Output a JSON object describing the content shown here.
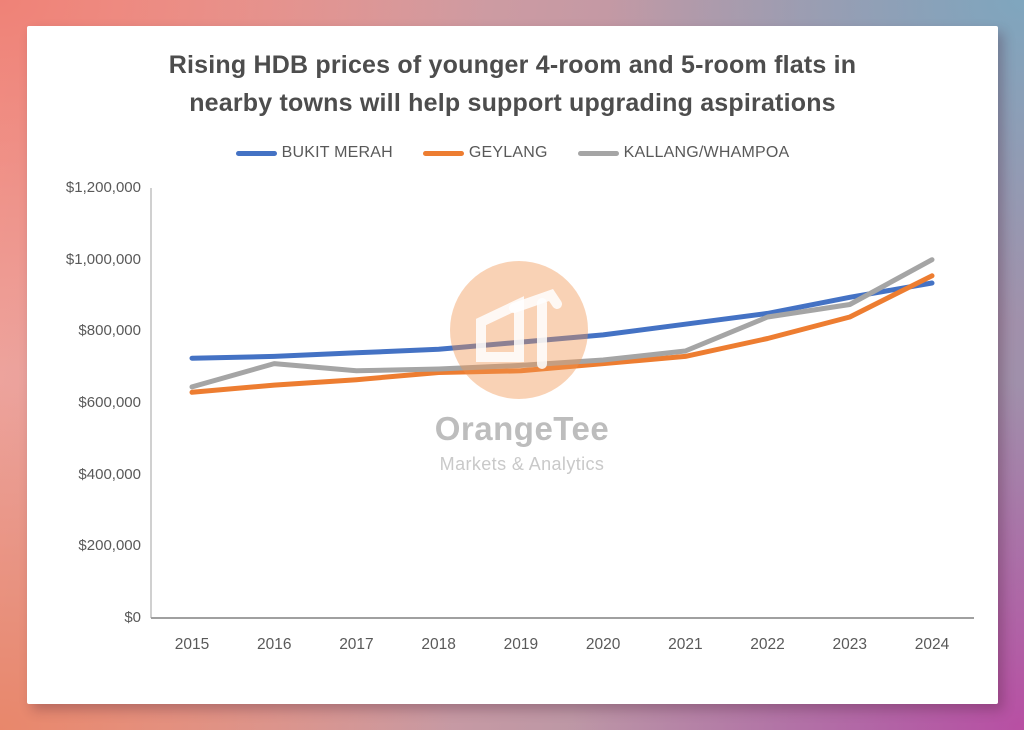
{
  "background": {
    "corner_colors": {
      "top_left": "#EF8277",
      "top_right": "#7FA6BE",
      "bottom_left": "#E8876B",
      "bottom_right": "#B84FA3"
    },
    "center_color": "#F2A49B",
    "right_mid_color": "#9B8FAC"
  },
  "card": {
    "background": "#FFFFFF"
  },
  "title": {
    "line1": "Rising HDB prices of younger 4-room and 5-room flats in",
    "line2": "nearby towns will help support upgrading aspirations"
  },
  "watermark": {
    "brand": "OrangeTee",
    "tagline": "Markets & Analytics",
    "logo_icon": "orangetee-ot-house-icon",
    "circle_color": "#F0934F"
  },
  "chart_data": {
    "type": "line",
    "title": "Rising HDB prices of younger 4-room and 5-room flats in nearby towns will help support upgrading aspirations",
    "categories": [
      "2015",
      "2016",
      "2017",
      "2018",
      "2019",
      "2020",
      "2021",
      "2022",
      "2023",
      "2024"
    ],
    "series": [
      {
        "name": "BUKIT MERAH",
        "color": "#4472C4",
        "values": [
          725000,
          730000,
          740000,
          750000,
          770000,
          790000,
          820000,
          850000,
          895000,
          935000
        ]
      },
      {
        "name": "GEYLANG",
        "color": "#ED7D31",
        "values": [
          630000,
          650000,
          665000,
          685000,
          690000,
          710000,
          730000,
          780000,
          840000,
          955000
        ]
      },
      {
        "name": "KALLANG/WHAMPOA",
        "color": "#A5A5A5",
        "values": [
          645000,
          710000,
          690000,
          695000,
          705000,
          720000,
          745000,
          840000,
          875000,
          1000000
        ]
      }
    ],
    "xlabel": "",
    "ylabel": "",
    "ylim": [
      0,
      1200000
    ],
    "y_tick_values": [
      0,
      200000,
      400000,
      600000,
      800000,
      1000000,
      1200000
    ],
    "y_tick_labels": [
      "$0",
      "$200,000",
      "$400,000",
      "$600,000",
      "$800,000",
      "$1,000,000",
      "$1,200,000"
    ],
    "grid": false,
    "legend_position": "top",
    "y_axis_color": "#C0C0C0",
    "x_axis_color": "#A0A0A0",
    "tick_label_color": "#595959",
    "line_width": 5
  }
}
